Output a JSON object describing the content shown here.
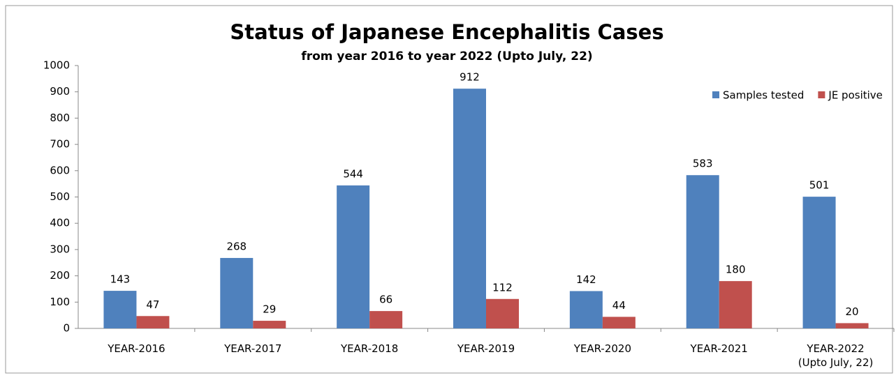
{
  "chart_data": {
    "type": "bar",
    "title": "Status of Japanese Encephalitis Cases",
    "subtitle": "from year 2016 to  year 2022 (Upto July, 22)",
    "categories": [
      "YEAR-2016",
      "YEAR-2017",
      "YEAR-2018",
      "YEAR-2019",
      "YEAR-2020",
      "YEAR-2021",
      "YEAR-2022\n(Upto July, 22)"
    ],
    "series": [
      {
        "name": "Samples tested",
        "color": "#4f81bd",
        "values": [
          143,
          268,
          544,
          912,
          142,
          583,
          501
        ]
      },
      {
        "name": "JE positive",
        "color": "#c0504d",
        "values": [
          47,
          29,
          66,
          112,
          44,
          180,
          20
        ]
      }
    ],
    "ylim": [
      0,
      1000
    ],
    "yticks": [
      0,
      100,
      200,
      300,
      400,
      500,
      600,
      700,
      800,
      900,
      1000
    ],
    "grid": false,
    "legend": "top-right"
  }
}
